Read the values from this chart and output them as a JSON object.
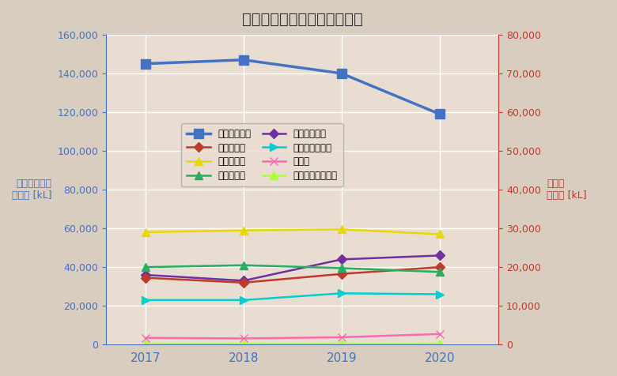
{
  "title": "シードル消費量の地域別推移",
  "left_ylabel": "西ヨーロッパ\n消費量 [kL]",
  "right_ylabel": "その他\n消費量 [kL]",
  "years": [
    2017,
    2018,
    2019,
    2020
  ],
  "series": [
    {
      "name": "西ヨーロッパ",
      "values": [
        145000,
        147000,
        140000,
        119000
      ],
      "color": "#4472C4",
      "marker": "s",
      "axis": "left",
      "linewidth": 2.5,
      "markersize": 8
    },
    {
      "name": "北アメリカ",
      "values": [
        58000,
        59000,
        59500,
        57000
      ],
      "color": "#E8D800",
      "marker": "^",
      "axis": "left",
      "linewidth": 1.8,
      "markersize": 7
    },
    {
      "name": "東ヨーロッパ",
      "values": [
        36000,
        33000,
        44000,
        46000
      ],
      "color": "#7030A0",
      "marker": "D",
      "axis": "left",
      "linewidth": 1.8,
      "markersize": 6
    },
    {
      "name": "アジア",
      "values": [
        3500,
        3200,
        3800,
        5500
      ],
      "color": "#FF69B4",
      "marker": "x",
      "axis": "left",
      "linewidth": 1.8,
      "markersize": 7
    },
    {
      "name": "南アフリカ",
      "values": [
        34500,
        32000,
        36500,
        40000
      ],
      "color": "#C0392B",
      "marker": "D",
      "axis": "left",
      "linewidth": 1.8,
      "markersize": 6
    },
    {
      "name": "オセアニア",
      "values": [
        40000,
        41000,
        39500,
        37500
      ],
      "color": "#27AE60",
      "marker": "^",
      "axis": "left",
      "linewidth": 1.8,
      "markersize": 7
    },
    {
      "name": "ラテンアメリカ",
      "values": [
        23000,
        23000,
        26500,
        26000
      ],
      "color": "#00CED1",
      "marker": ">",
      "axis": "left",
      "linewidth": 1.8,
      "markersize": 7
    },
    {
      "name": "中東、北アフリカ",
      "values": [
        500,
        500,
        500,
        500
      ],
      "color": "#ADFF2F",
      "marker": "^",
      "axis": "left",
      "linewidth": 1.8,
      "markersize": 7
    }
  ],
  "left_ylim": [
    0,
    160000
  ],
  "right_ylim": [
    0,
    80000
  ],
  "left_yticks": [
    0,
    20000,
    40000,
    60000,
    80000,
    100000,
    120000,
    140000,
    160000
  ],
  "right_yticks": [
    0,
    10000,
    20000,
    30000,
    40000,
    50000,
    60000,
    70000,
    80000
  ],
  "bg_color": "#D9CDBF",
  "plot_bg_color": "#E8DDD0",
  "grid_color": "#FFFFFF",
  "left_axis_color": "#4472C4",
  "right_axis_color": "#C0392B",
  "legend_order_col1": [
    "西ヨーロッパ",
    "北アメリカ",
    "東ヨーロッパ",
    "アジア"
  ],
  "legend_order_col2": [
    "南アフリカ",
    "オセアニア",
    "ラテンアメリカ",
    "中東、北アフリカ"
  ]
}
